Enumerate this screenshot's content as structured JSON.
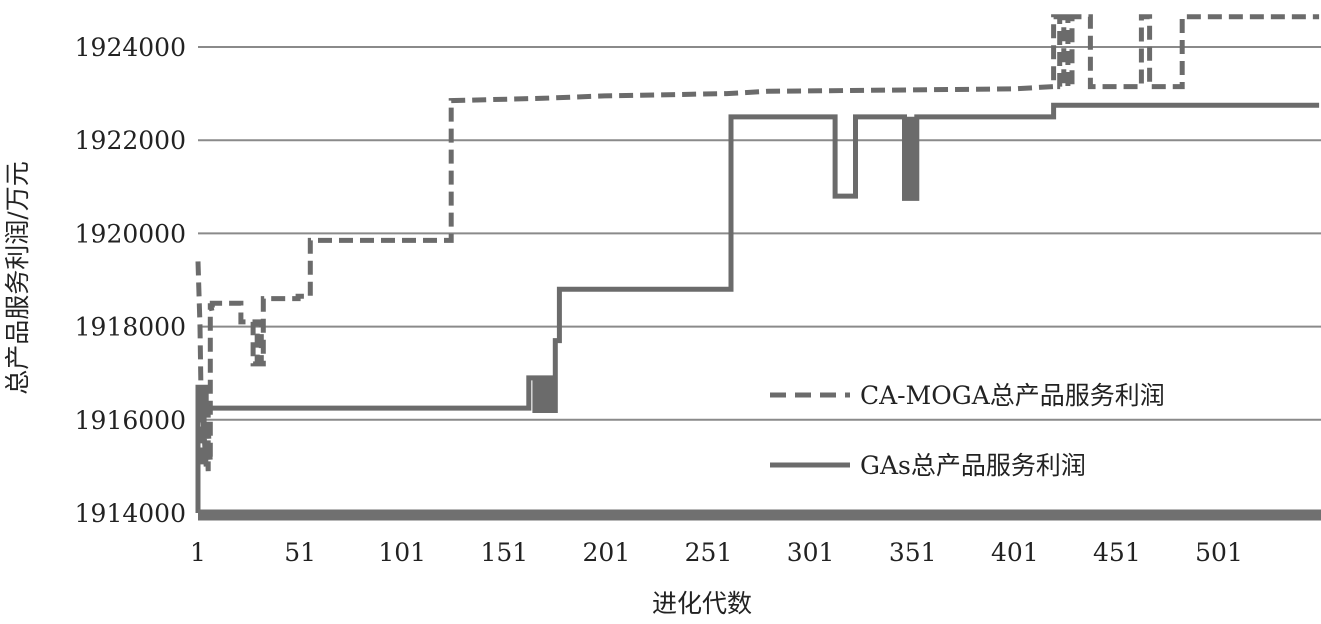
{
  "chart_data": {
    "type": "line",
    "title": "",
    "xlabel": "进化代数",
    "ylabel": "总产品服务利润/万元",
    "xlim": [
      1,
      550
    ],
    "ylim": [
      1914000,
      1925000
    ],
    "x_ticks": [
      1,
      51,
      101,
      151,
      201,
      251,
      301,
      351,
      401,
      451,
      501
    ],
    "y_ticks": [
      1914000,
      1916000,
      1918000,
      1920000,
      1922000,
      1924000
    ],
    "grid": "horizontal",
    "legend_position": "bottom-right",
    "colors": {
      "line": "#6b6b6b",
      "grid": "#8a8a8a",
      "axis": "#707070"
    },
    "series": [
      {
        "name": "CA-MOGA总产品服务利润",
        "style": "dashed",
        "x": [
          1,
          2,
          3,
          3,
          5,
          5,
          6,
          6,
          7,
          7,
          8,
          8,
          10,
          10,
          20,
          22,
          22,
          28,
          28,
          30,
          30,
          32,
          32,
          33,
          33,
          50,
          50,
          56,
          56,
          58,
          58,
          125,
          125,
          170,
          200,
          260,
          280,
          400,
          420,
          420,
          423,
          423,
          425,
          425,
          427,
          427,
          429,
          429,
          438,
          438,
          463,
          463,
          467,
          467,
          483,
          483,
          550
        ],
        "y": [
          1919400,
          1918000,
          1915000,
          1916300,
          1915000,
          1916000,
          1914900,
          1915800,
          1915100,
          1918500,
          1918300,
          1918500,
          1918500,
          1918500,
          1918500,
          1918500,
          1918100,
          1918100,
          1917200,
          1917200,
          1918100,
          1918100,
          1917200,
          1917200,
          1918600,
          1918600,
          1918650,
          1918650,
          1919850,
          1919850,
          1919850,
          1919850,
          1922850,
          1922900,
          1922950,
          1923000,
          1923050,
          1923100,
          1923150,
          1924650,
          1924650,
          1923150,
          1923150,
          1924650,
          1924650,
          1923150,
          1923150,
          1924650,
          1924650,
          1923150,
          1923150,
          1924650,
          1924650,
          1923150,
          1923150,
          1924650,
          1924650
        ]
      },
      {
        "name": "GAs总产品服务利润",
        "style": "solid",
        "x": [
          1,
          1,
          3,
          3,
          4,
          4,
          5,
          5,
          6,
          6,
          163,
          163,
          166,
          166,
          168,
          168,
          170,
          170,
          172,
          172,
          174,
          174,
          176,
          176,
          178,
          178,
          262,
          262,
          313,
          313,
          323,
          323,
          347,
          347,
          349,
          349,
          351,
          351,
          353,
          353,
          420,
          420,
          550
        ],
        "y": [
          1914000,
          1916700,
          1916700,
          1916000,
          1916000,
          1916700,
          1916700,
          1916100,
          1916100,
          1916250,
          1916250,
          1916900,
          1916900,
          1916200,
          1916200,
          1916900,
          1916900,
          1916200,
          1916200,
          1916900,
          1916900,
          1916200,
          1916200,
          1917700,
          1917700,
          1918800,
          1918800,
          1922500,
          1922500,
          1920800,
          1920800,
          1922500,
          1922500,
          1920750,
          1920750,
          1922450,
          1922450,
          1920750,
          1920750,
          1922500,
          1922500,
          1922750,
          1922750
        ]
      }
    ]
  }
}
